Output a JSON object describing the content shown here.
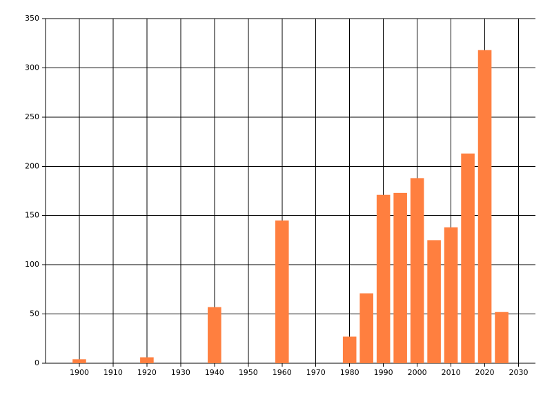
{
  "chart_data": {
    "type": "bar",
    "x": [
      1900,
      1920,
      1940,
      1960,
      1980,
      1985,
      1990,
      1995,
      2000,
      2005,
      2010,
      2015,
      2020,
      2025
    ],
    "values": [
      4,
      6,
      57,
      145,
      27,
      71,
      171,
      173,
      188,
      125,
      138,
      213,
      318,
      52
    ],
    "color": "#ff7f3f",
    "xlim": [
      1890,
      2035
    ],
    "xticks": [
      1900,
      1910,
      1920,
      1930,
      1940,
      1950,
      1960,
      1970,
      1980,
      1990,
      2000,
      2010,
      2020,
      2030
    ],
    "ylim": [
      0,
      350
    ],
    "yticks": [
      0,
      50,
      100,
      150,
      200,
      250,
      300,
      350
    ],
    "grid": true
  }
}
